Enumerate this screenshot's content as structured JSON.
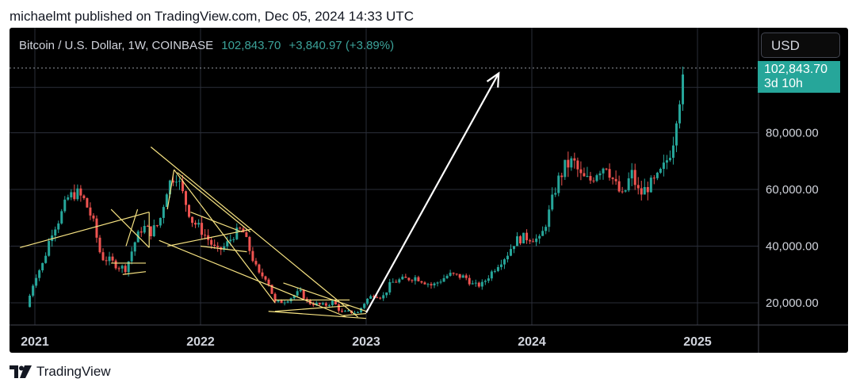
{
  "header": {
    "publish_text": "michaelmt published on TradingView.com, Dec 05, 2024 14:33 UTC"
  },
  "chart_data": {
    "type": "candlestick",
    "title": "Bitcoin / U.S. Dollar, 1W, COINBASE",
    "last_price": "102,843.70",
    "change": "+3,840.97 (+3.89%)",
    "currency": "USD",
    "price_tag": {
      "value": "102,843.70",
      "countdown": "3d 10h"
    },
    "y_axis": {
      "ticks": [
        "20,000.00",
        "40,000.00",
        "60,000.00",
        "80,000.00"
      ],
      "tick_values": [
        20000,
        40000,
        60000,
        80000
      ],
      "range": [
        12000,
        110000
      ]
    },
    "x_axis": {
      "ticks": [
        "2021",
        "2022",
        "2023",
        "2024",
        "2025"
      ],
      "tick_years": [
        2021,
        2022,
        2023,
        2024,
        2025
      ]
    },
    "series_close_approx": [
      [
        2020.95,
        18500
      ],
      [
        2021.0,
        29000
      ],
      [
        2021.05,
        34000
      ],
      [
        2021.1,
        45000
      ],
      [
        2021.15,
        50000
      ],
      [
        2021.2,
        57000
      ],
      [
        2021.25,
        59000
      ],
      [
        2021.3,
        56000
      ],
      [
        2021.35,
        49000
      ],
      [
        2021.4,
        36000
      ],
      [
        2021.45,
        35000
      ],
      [
        2021.5,
        33000
      ],
      [
        2021.55,
        32000
      ],
      [
        2021.6,
        41000
      ],
      [
        2021.65,
        47000
      ],
      [
        2021.7,
        45000
      ],
      [
        2021.75,
        48000
      ],
      [
        2021.8,
        61000
      ],
      [
        2021.85,
        66000
      ],
      [
        2021.9,
        57000
      ],
      [
        2021.95,
        49000
      ],
      [
        2022.0,
        46000
      ],
      [
        2022.05,
        42000
      ],
      [
        2022.1,
        38000
      ],
      [
        2022.15,
        40000
      ],
      [
        2022.2,
        44000
      ],
      [
        2022.25,
        46000
      ],
      [
        2022.3,
        38000
      ],
      [
        2022.35,
        30000
      ],
      [
        2022.4,
        29000
      ],
      [
        2022.45,
        20000
      ],
      [
        2022.5,
        20500
      ],
      [
        2022.55,
        22000
      ],
      [
        2022.6,
        24000
      ],
      [
        2022.65,
        20000
      ],
      [
        2022.7,
        19500
      ],
      [
        2022.75,
        19000
      ],
      [
        2022.8,
        20500
      ],
      [
        2022.85,
        16500
      ],
      [
        2022.9,
        16800
      ],
      [
        2022.95,
        16500
      ],
      [
        2023.0,
        21000
      ],
      [
        2023.05,
        23000
      ],
      [
        2023.1,
        22000
      ],
      [
        2023.15,
        27000
      ],
      [
        2023.2,
        28000
      ],
      [
        2023.3,
        29000
      ],
      [
        2023.4,
        26000
      ],
      [
        2023.5,
        30000
      ],
      [
        2023.6,
        29000
      ],
      [
        2023.65,
        26000
      ],
      [
        2023.7,
        26500
      ],
      [
        2023.8,
        34000
      ],
      [
        2023.85,
        37000
      ],
      [
        2023.9,
        42000
      ],
      [
        2023.95,
        43000
      ],
      [
        2024.0,
        43000
      ],
      [
        2024.05,
        42000
      ],
      [
        2024.1,
        51000
      ],
      [
        2024.15,
        62000
      ],
      [
        2024.2,
        68000
      ],
      [
        2024.25,
        70000
      ],
      [
        2024.3,
        64000
      ],
      [
        2024.35,
        63000
      ],
      [
        2024.4,
        67000
      ],
      [
        2024.45,
        69000
      ],
      [
        2024.5,
        62000
      ],
      [
        2024.55,
        57000
      ],
      [
        2024.6,
        66000
      ],
      [
        2024.65,
        58000
      ],
      [
        2024.7,
        61000
      ],
      [
        2024.75,
        63000
      ],
      [
        2024.8,
        68000
      ],
      [
        2024.85,
        76000
      ],
      [
        2024.88,
        90000
      ],
      [
        2024.91,
        97000
      ],
      [
        2024.93,
        102843.7
      ]
    ]
  },
  "footer": {
    "brand": "TradingView"
  },
  "colors": {
    "up": "#26a69a",
    "down": "#ef5350",
    "trendline": "#f7e382",
    "arrow": "#ffffff",
    "grid": "#2a2e39"
  }
}
